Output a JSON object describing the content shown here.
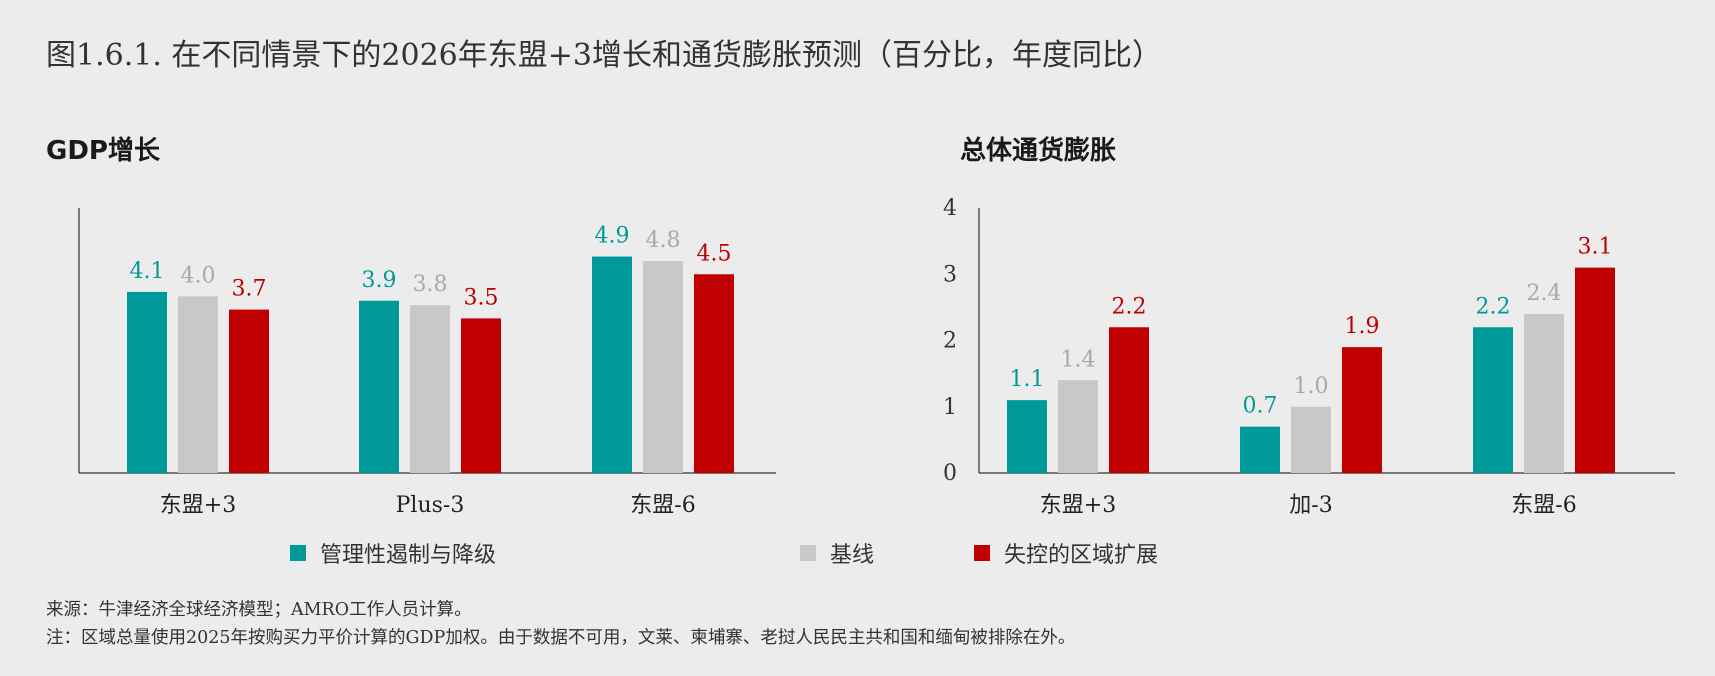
{
  "figure_title": "图1.6.1. 在不同情景下的2026年东盟+3增长和通货膨胀预测（百分比，年度同比）",
  "colors": {
    "series1": "#009999",
    "series2": "#c8c8c9",
    "series3": "#c00000"
  },
  "legend": [
    {
      "label": "管理性遏制与降级",
      "color": "#009999"
    },
    {
      "label": "基线",
      "color": "#c8c8c9"
    },
    {
      "label": "失控的区域扩展",
      "color": "#c00000"
    }
  ],
  "chart_data": [
    {
      "type": "bar",
      "title": "GDP增长",
      "categories": [
        "东盟+3",
        "Plus-3",
        "东盟-6"
      ],
      "series": [
        {
          "name": "管理性遏制与降级",
          "values": [
            4.1,
            3.9,
            4.9
          ]
        },
        {
          "name": "基线",
          "values": [
            4.0,
            3.8,
            4.8
          ]
        },
        {
          "name": "失控的区域扩展",
          "values": [
            3.7,
            3.5,
            4.5
          ]
        }
      ],
      "ylim": [
        0,
        6
      ],
      "y_ticks_shown": false,
      "data_labels": true
    },
    {
      "type": "bar",
      "title": "总体通货膨胀",
      "categories": [
        "东盟+3",
        "加-3",
        "东盟-6"
      ],
      "series": [
        {
          "name": "管理性遏制与降级",
          "values": [
            1.1,
            0.7,
            2.2
          ]
        },
        {
          "name": "基线",
          "values": [
            1.4,
            1.0,
            2.4
          ]
        },
        {
          "name": "失控的区域扩展",
          "values": [
            2.2,
            1.9,
            3.1
          ]
        }
      ],
      "ylim": [
        0,
        4
      ],
      "yticks": [
        "0",
        "1",
        "2",
        "3",
        "4"
      ],
      "data_labels": true
    }
  ],
  "footnotes": {
    "source": "来源：牛津经济全球经济模型；AMRO工作人员计算。",
    "note": "注：区域总量使用2025年按购买力平价计算的GDP加权。由于数据不可用，文莱、柬埔寨、老挝人民民主共和国和缅甸被排除在外。"
  }
}
